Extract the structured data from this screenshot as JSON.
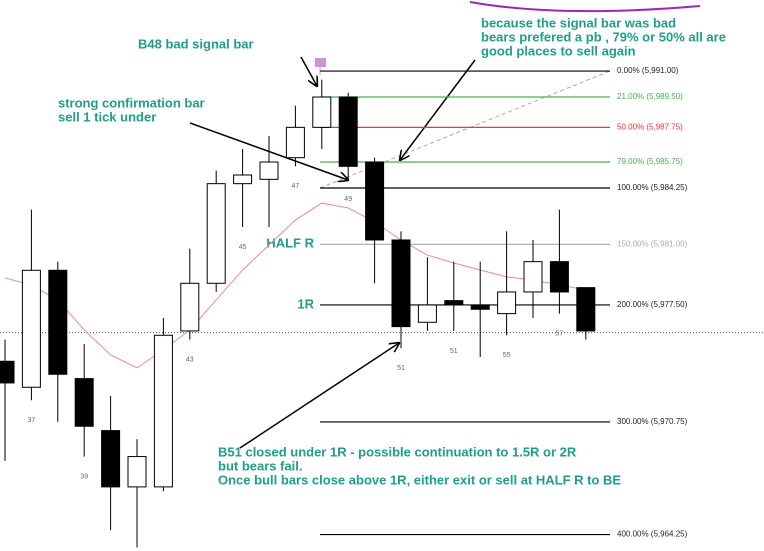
{
  "chart_data": {
    "type": "candlestick",
    "ylim": [
      5963.3,
      5995.1
    ],
    "categories": [
      null,
      "37",
      null,
      "39",
      null,
      null,
      null,
      "43",
      null,
      "45",
      null,
      "47",
      null,
      "49",
      null,
      "51",
      null,
      "51",
      null,
      "55",
      null,
      "57",
      null
    ],
    "open": [
      5974.25,
      5972.75,
      5979.5,
      5973.25,
      5970.25,
      5967,
      5967,
      5976,
      5978.75,
      5984.5,
      5984.75,
      5986,
      5987.75,
      5989.5,
      5985.75,
      5981.25,
      5976.5,
      5977.75,
      5977.5,
      5977,
      5978.25,
      5980,
      5978.5
    ],
    "high": [
      5975.5,
      5983,
      5980,
      5975.25,
      5972.25,
      5969.75,
      5976.75,
      5980.75,
      5985.25,
      5986.5,
      5987.25,
      5989,
      5990.5,
      5989.75,
      5986,
      5981.75,
      5980.25,
      5980,
      5980,
      5981.75,
      5981.25,
      5983,
      5978.5
    ],
    "low": [
      5968.5,
      5972,
      5970.75,
      5968.75,
      5964.5,
      5963.5,
      5966.75,
      5975.5,
      5978.25,
      5982,
      5982,
      5985.5,
      5986.5,
      5984.75,
      5978.75,
      5975,
      5976,
      5976,
      5974.5,
      5975.75,
      5976.75,
      5977,
      5975.5
    ],
    "close": [
      5973,
      5979.5,
      5973.5,
      5970.5,
      5967,
      5968.75,
      5975.75,
      5978.75,
      5984.5,
      5985,
      5985.75,
      5987.75,
      5989.5,
      5985.5,
      5981.25,
      5976.25,
      5977.5,
      5977.5,
      5977.25,
      5978.25,
      5980,
      5978.25,
      5976
    ],
    "up_color": "#ffffff",
    "down_color": "#000000",
    "moving_average": {
      "color": "#f08a8a",
      "values": [
        5979.06,
        5978.65,
        5977.79,
        5976.06,
        5974.62,
        5973.87,
        5974.9,
        5976.06,
        5977.79,
        5979.52,
        5980.96,
        5982.4,
        5983.38,
        5983.1,
        5982.29,
        5981.25,
        5980.38,
        5979.92,
        5979.52,
        5979.12,
        5978.94,
        5978.65,
        5978.37
      ]
    },
    "price_line": 5975.9,
    "fib_levels": [
      {
        "value": 5991.0,
        "label": "0.00% (5,991.00)",
        "color": "#000000"
      },
      {
        "value": 5989.5,
        "label": "21.00% (5,989.50)",
        "color": "#4caf50"
      },
      {
        "value": 5987.75,
        "label": "50.00% (5,987.75)",
        "color": "#e53935"
      },
      {
        "value": 5985.75,
        "label": "79.00% (5,985.75)",
        "color": "#4caf50"
      },
      {
        "value": 5984.25,
        "label": "100.00% (5,984.25)",
        "color": "#000000"
      },
      {
        "value": 5981.0,
        "label": "150.00% (5,981.00)",
        "color": "#aaaaaa",
        "tag": "HALF R"
      },
      {
        "value": 5977.5,
        "label": "200.00% (5,977.50)",
        "color": "#000000",
        "tag": "1R"
      },
      {
        "value": 5970.75,
        "label": "300.00% (5,970.75)",
        "color": "#000000"
      },
      {
        "value": 5964.25,
        "label": "400.00% (5,964.25)",
        "color": "#000000"
      }
    ],
    "annotations": [
      {
        "lines": [
          "B48 bad signal bar"
        ]
      },
      {
        "lines": [
          "strong confirmation bar",
          "sell 1 tick under"
        ]
      },
      {
        "lines": [
          "because the signal bar was bad",
          "bears prefered a pb , 79% or 50% all are",
          "good places to sell again"
        ]
      },
      {
        "lines": [
          "B51 closed under 1R - possible continuation to 1.5R or 2R",
          "but bears fail.",
          "Once bull bars close above 1R, either exit or sell at HALF R  to BE"
        ]
      }
    ]
  }
}
